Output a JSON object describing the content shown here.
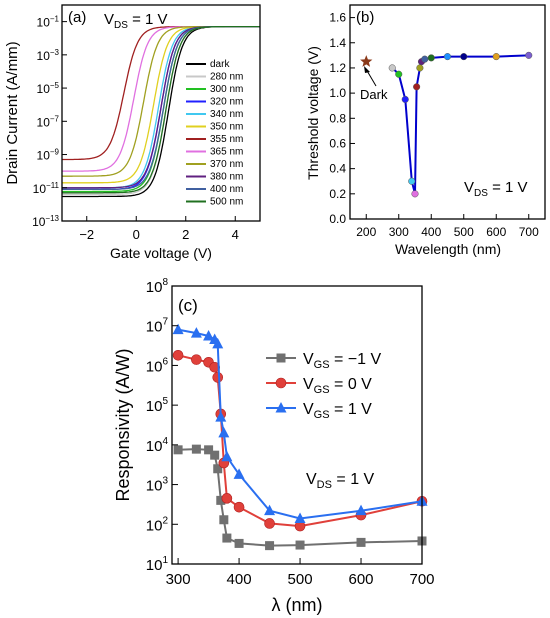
{
  "chart_data": [
    {
      "panel_label": "(a)",
      "type": "line",
      "annotation": {
        "base": "V",
        "sub": "DS",
        "rest": " = 1 V"
      },
      "xlabel": "Gate voltage (V)",
      "ylabel": "Drain Current (A/mm)",
      "xlim": [
        -3,
        5
      ],
      "ylim": [
        1e-13,
        1
      ],
      "yscale": "log",
      "xticks": [
        -2,
        0,
        2,
        4
      ],
      "yticks": [
        {
          "value": 1e-13,
          "base": "10",
          "exp": "-13"
        },
        {
          "value": 1e-11,
          "base": "10",
          "exp": "-11"
        },
        {
          "value": 1e-09,
          "base": "10",
          "exp": "-9"
        },
        {
          "value": 1e-07,
          "base": "10",
          "exp": "-7"
        },
        {
          "value": 1e-05,
          "base": "10",
          "exp": "-5"
        },
        {
          "value": 0.001,
          "base": "10",
          "exp": "-3"
        },
        {
          "value": 0.1,
          "base": "10",
          "exp": "-1"
        }
      ],
      "legend_position": "right",
      "series": [
        {
          "name": "dark",
          "color": "#000000",
          "vth": 1.3,
          "off": 3e-12
        },
        {
          "name": "280 nm",
          "color": "#c8c8c8",
          "vth": 1.2,
          "off": 4e-12
        },
        {
          "name": "300 nm",
          "color": "#22c022",
          "vth": 1.1,
          "off": 6e-12
        },
        {
          "name": "320 nm",
          "color": "#2020ff",
          "vth": 1.0,
          "off": 8e-12
        },
        {
          "name": "340 nm",
          "color": "#40c8f0",
          "vth": 0.9,
          "off": 1e-11
        },
        {
          "name": "350 nm",
          "color": "#e0d020",
          "vth": 0.7,
          "off": 2e-11
        },
        {
          "name": "355 nm",
          "color": "#a02020",
          "vth": -0.5,
          "off": 5e-10
        },
        {
          "name": "365 nm",
          "color": "#e070e0",
          "vth": -0.1,
          "off": 1e-10
        },
        {
          "name": "370 nm",
          "color": "#a0a020",
          "vth": 0.3,
          "off": 5e-11
        },
        {
          "name": "380 nm",
          "color": "#602080",
          "vth": 1.0,
          "off": 1e-11
        },
        {
          "name": "400 nm",
          "color": "#4060a0",
          "vth": 1.1,
          "off": 8e-12
        },
        {
          "name": "500 nm",
          "color": "#207020",
          "vth": 1.2,
          "off": 5e-12
        }
      ]
    },
    {
      "panel_label": "(b)",
      "type": "line",
      "annotation": {
        "base": "V",
        "sub": "DS",
        "rest": " = 1 V"
      },
      "point_label": "Dark",
      "xlabel": "Wavelength (nm)",
      "ylabel": "Threshold voltage (V)",
      "xlim": [
        150,
        750
      ],
      "ylim": [
        0,
        1.7
      ],
      "xticks": [
        200,
        300,
        400,
        500,
        600,
        700
      ],
      "yticks": [
        0.0,
        0.2,
        0.4,
        0.6,
        0.8,
        1.0,
        1.2,
        1.4,
        1.6
      ],
      "dark_point": {
        "x": 200,
        "y": 1.25,
        "color": "#8b3a1a"
      },
      "x": [
        280,
        300,
        320,
        340,
        350,
        355,
        365,
        370,
        380,
        400,
        450,
        500,
        600,
        700
      ],
      "y": [
        1.2,
        1.15,
        0.95,
        0.3,
        0.2,
        1.05,
        1.2,
        1.25,
        1.27,
        1.28,
        1.29,
        1.29,
        1.29,
        1.3
      ],
      "point_colors": [
        "#c8c8c8",
        "#22c022",
        "#2020ff",
        "#40c8f0",
        "#e070e0",
        "#a02020",
        "#a0a020",
        "#602080",
        "#4060a0",
        "#207020",
        "#1e90ff",
        "#00008b",
        "#e0a020",
        "#7b5fd0"
      ],
      "line_color": "#0000cc"
    },
    {
      "panel_label": "(c)",
      "type": "line",
      "annotation": {
        "base": "V",
        "sub": "DS",
        "rest": " = 1 V"
      },
      "xlabel": "λ (nm)",
      "ylabel": "Responsivity (A/W)",
      "xlim": [
        290,
        700
      ],
      "ylim": [
        10,
        100000000.0
      ],
      "yscale": "log",
      "xticks": [
        300,
        400,
        500,
        600,
        700
      ],
      "yticks": [
        {
          "value": 10,
          "base": "10",
          "exp": "1"
        },
        {
          "value": 100,
          "base": "10",
          "exp": "2"
        },
        {
          "value": 1000,
          "base": "10",
          "exp": "3"
        },
        {
          "value": 10000,
          "base": "10",
          "exp": "4"
        },
        {
          "value": 100000,
          "base": "10",
          "exp": "5"
        },
        {
          "value": 1000000,
          "base": "10",
          "exp": "6"
        },
        {
          "value": 10000000,
          "base": "10",
          "exp": "7"
        },
        {
          "value": 100000000,
          "base": "10",
          "exp": "8"
        }
      ],
      "legend_position": "center-right",
      "series": [
        {
          "name": "V_GS = −1 V",
          "legend": {
            "base": "V",
            "sub": "GS",
            "rest": " = −1 V"
          },
          "marker": "square",
          "color": "#707070",
          "x": [
            300,
            330,
            350,
            360,
            365,
            370,
            375,
            380,
            400,
            450,
            500,
            600,
            700
          ],
          "y": [
            7500,
            7800,
            7500,
            5500,
            2500,
            400,
            130,
            45,
            33,
            29,
            30,
            35,
            38
          ]
        },
        {
          "name": "V_GS = 0 V",
          "legend": {
            "base": "V",
            "sub": "GS",
            "rest": " = 0 V"
          },
          "marker": "circle",
          "color": "#e0403a",
          "x": [
            300,
            330,
            350,
            360,
            365,
            370,
            375,
            380,
            400,
            450,
            500,
            600,
            700
          ],
          "y": [
            1800000,
            1400000,
            1200000,
            900000,
            500000,
            60000,
            3500,
            450,
            270,
            105,
            90,
            170,
            380
          ]
        },
        {
          "name": "V_GS = 1 V",
          "legend": {
            "base": "V",
            "sub": "GS",
            "rest": " = 1 V"
          },
          "marker": "triangle",
          "color": "#2a6ff0",
          "x": [
            300,
            330,
            350,
            360,
            365,
            370,
            375,
            380,
            400,
            450,
            500,
            600,
            700
          ],
          "y": [
            8000000,
            6500000,
            5500000,
            4500000,
            3500000,
            50000,
            20000,
            5000,
            1800,
            220,
            140,
            220,
            380
          ]
        }
      ]
    }
  ]
}
